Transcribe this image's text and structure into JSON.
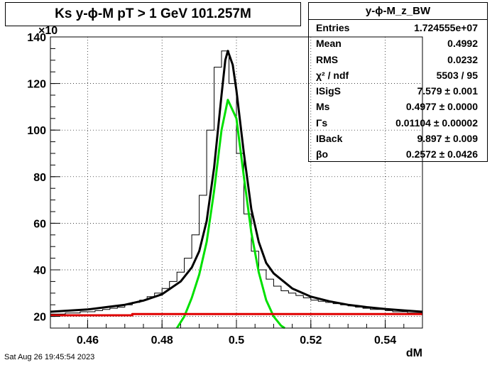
{
  "title": "Ks y-ϕ-M pT > 1 GeV  101.257M",
  "stats": {
    "name": "y-ϕ-M_z_BW",
    "rows": [
      {
        "label": "Entries",
        "value": "1.724555e+07"
      },
      {
        "label": "Mean",
        "value": "0.4992"
      },
      {
        "label": "RMS",
        "value": "0.0232"
      },
      {
        "label": "χ² / ndf",
        "value": "5503 / 95"
      },
      {
        "label": "ISigS",
        "value": "7.579 ± 0.001"
      },
      {
        "label": "Ms",
        "value": "0.4977 ± 0.0000"
      },
      {
        "label": "Γs",
        "value": "0.01104 ± 0.00002"
      },
      {
        "label": "IBack",
        "value": "9.897 ± 0.009"
      },
      {
        "label": "βo",
        "value": "0.2572 ± 0.0426"
      }
    ]
  },
  "datestamp": "Sat Aug 26 19:45:54 2023",
  "chart_data": {
    "type": "line",
    "title": "Ks y-ϕ-M pT > 1 GeV  101.257M",
    "xlabel": "dM",
    "ylabel": "",
    "y_multiplier_label": "×10",
    "xlim": [
      0.45,
      0.55
    ],
    "ylim": [
      15,
      140
    ],
    "x_ticks": [
      0.46,
      0.48,
      0.5,
      0.52,
      0.54
    ],
    "x_tick_labels": [
      "0.46",
      "0.48",
      "0.5",
      "0.52",
      "0.54"
    ],
    "y_ticks": [
      20,
      40,
      60,
      80,
      100,
      120,
      140
    ],
    "y_tick_labels": [
      "20",
      "40",
      "60",
      "80",
      "100",
      "120",
      "140"
    ],
    "grid": true,
    "colors": {
      "histogram": "#000000",
      "total_fit": "#000000",
      "signal": "#00e000",
      "background": "#e00000"
    },
    "series": [
      {
        "kind": "histogram",
        "x": [
          0.451,
          0.453,
          0.455,
          0.457,
          0.459,
          0.461,
          0.463,
          0.465,
          0.467,
          0.469,
          0.471,
          0.473,
          0.475,
          0.477,
          0.479,
          0.481,
          0.483,
          0.485,
          0.487,
          0.489,
          0.491,
          0.493,
          0.495,
          0.497,
          0.499,
          0.501,
          0.503,
          0.505,
          0.507,
          0.509,
          0.511,
          0.513,
          0.515,
          0.517,
          0.519,
          0.521,
          0.523,
          0.525,
          0.527,
          0.529,
          0.531,
          0.533,
          0.535,
          0.537,
          0.539,
          0.541,
          0.543,
          0.545,
          0.547,
          0.549
        ],
        "values": [
          21,
          21,
          21.5,
          21.5,
          22,
          22,
          22.5,
          23,
          23.5,
          24,
          25,
          26,
          27,
          28.5,
          30,
          32,
          35,
          39,
          45,
          55,
          72,
          100,
          127,
          134,
          120,
          90,
          64,
          48,
          40,
          36,
          33,
          31,
          30,
          29,
          28,
          27,
          26.5,
          26,
          25.5,
          25,
          24.5,
          24,
          23.5,
          23,
          23,
          22.5,
          22,
          22,
          21.5,
          21.5
        ]
      },
      {
        "kind": "total_fit",
        "x": [
          0.45,
          0.455,
          0.46,
          0.465,
          0.47,
          0.475,
          0.48,
          0.485,
          0.488,
          0.49,
          0.492,
          0.494,
          0.496,
          0.497,
          0.4977,
          0.499,
          0.5,
          0.502,
          0.504,
          0.506,
          0.508,
          0.51,
          0.515,
          0.52,
          0.525,
          0.53,
          0.535,
          0.54,
          0.545,
          0.55
        ],
        "values": [
          22,
          22.5,
          23,
          24,
          25,
          26.8,
          29.5,
          35,
          41,
          48,
          61,
          84,
          115,
          130,
          134,
          128,
          117,
          90,
          66,
          52,
          43,
          38.5,
          32,
          28.5,
          26.5,
          25,
          24,
          23.2,
          22.6,
          22
        ]
      },
      {
        "kind": "signal",
        "x": [
          0.484,
          0.486,
          0.488,
          0.49,
          0.492,
          0.494,
          0.496,
          0.4977,
          0.5,
          0.502,
          0.504,
          0.506,
          0.508,
          0.51,
          0.512,
          0.513
        ],
        "values": [
          15,
          20,
          28,
          38,
          52,
          74,
          100,
          113,
          105,
          80,
          56,
          39,
          27,
          20,
          16,
          15
        ]
      },
      {
        "kind": "background",
        "x": [
          0.45,
          0.472,
          0.472,
          0.55
        ],
        "values": [
          20.5,
          20.5,
          21,
          21
        ]
      }
    ]
  }
}
